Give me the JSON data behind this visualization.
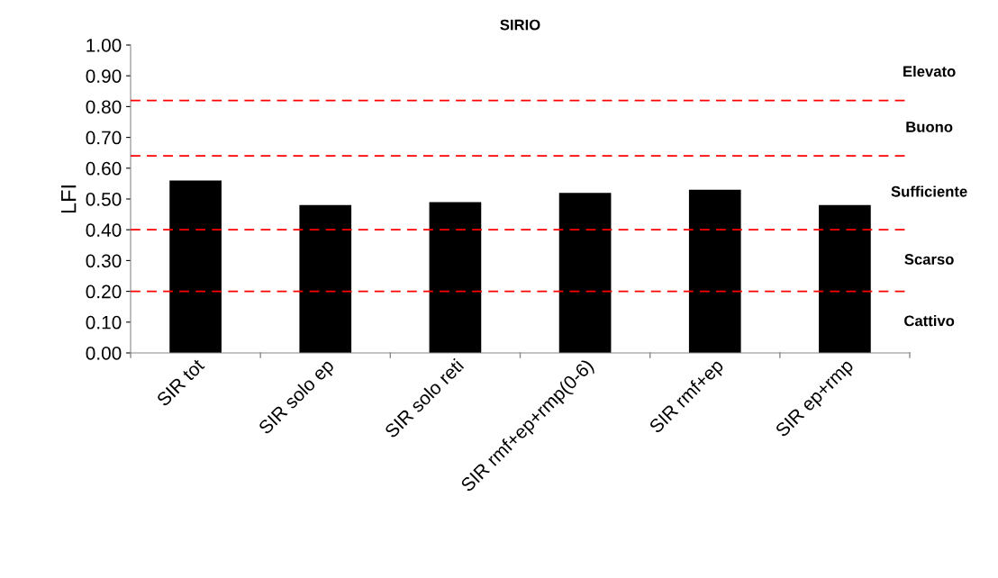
{
  "chart_data": {
    "type": "bar",
    "title": "SIRIO",
    "ylabel": "LFI",
    "categories": [
      "SIR tot",
      "SIR solo ep",
      "SIR solo reti",
      "SIR rmf+ep+rmp(0-6)",
      "SIR rmf+ep",
      "SIR ep+rmp"
    ],
    "values": [
      0.56,
      0.48,
      0.49,
      0.52,
      0.53,
      0.48
    ],
    "color": "#000000",
    "ylim": [
      0,
      1
    ],
    "yticks": [
      {
        "value": 0,
        "label": "0.00"
      },
      {
        "value": 0.1,
        "label": "0.10"
      },
      {
        "value": 0.2,
        "label": "0.20"
      },
      {
        "value": 0.3,
        "label": "0.30"
      },
      {
        "value": 0.4,
        "label": "0.40"
      },
      {
        "value": 0.5,
        "label": "0.50"
      },
      {
        "value": 0.6,
        "label": "0.60"
      },
      {
        "value": 0.7,
        "label": "0.70"
      },
      {
        "value": 0.8,
        "label": "0.80"
      },
      {
        "value": 0.9,
        "label": "0.90"
      },
      {
        "value": 1,
        "label": "1.00"
      }
    ],
    "grid": false,
    "legend": false,
    "ref_lines": [
      {
        "axis": "y",
        "value": 0.82,
        "color": "#ff0000",
        "line_style": "dashed"
      },
      {
        "axis": "y",
        "value": 0.64,
        "color": "#ff0000",
        "line_style": "dashed"
      },
      {
        "axis": "y",
        "value": 0.4,
        "color": "#ff0000",
        "line_style": "dashed"
      },
      {
        "axis": "y",
        "value": 0.2,
        "color": "#ff0000",
        "line_style": "dashed"
      }
    ],
    "annotations": [
      "Elevato",
      "Buono",
      "Sufficiente",
      "Scarso",
      "Cattivo"
    ]
  }
}
